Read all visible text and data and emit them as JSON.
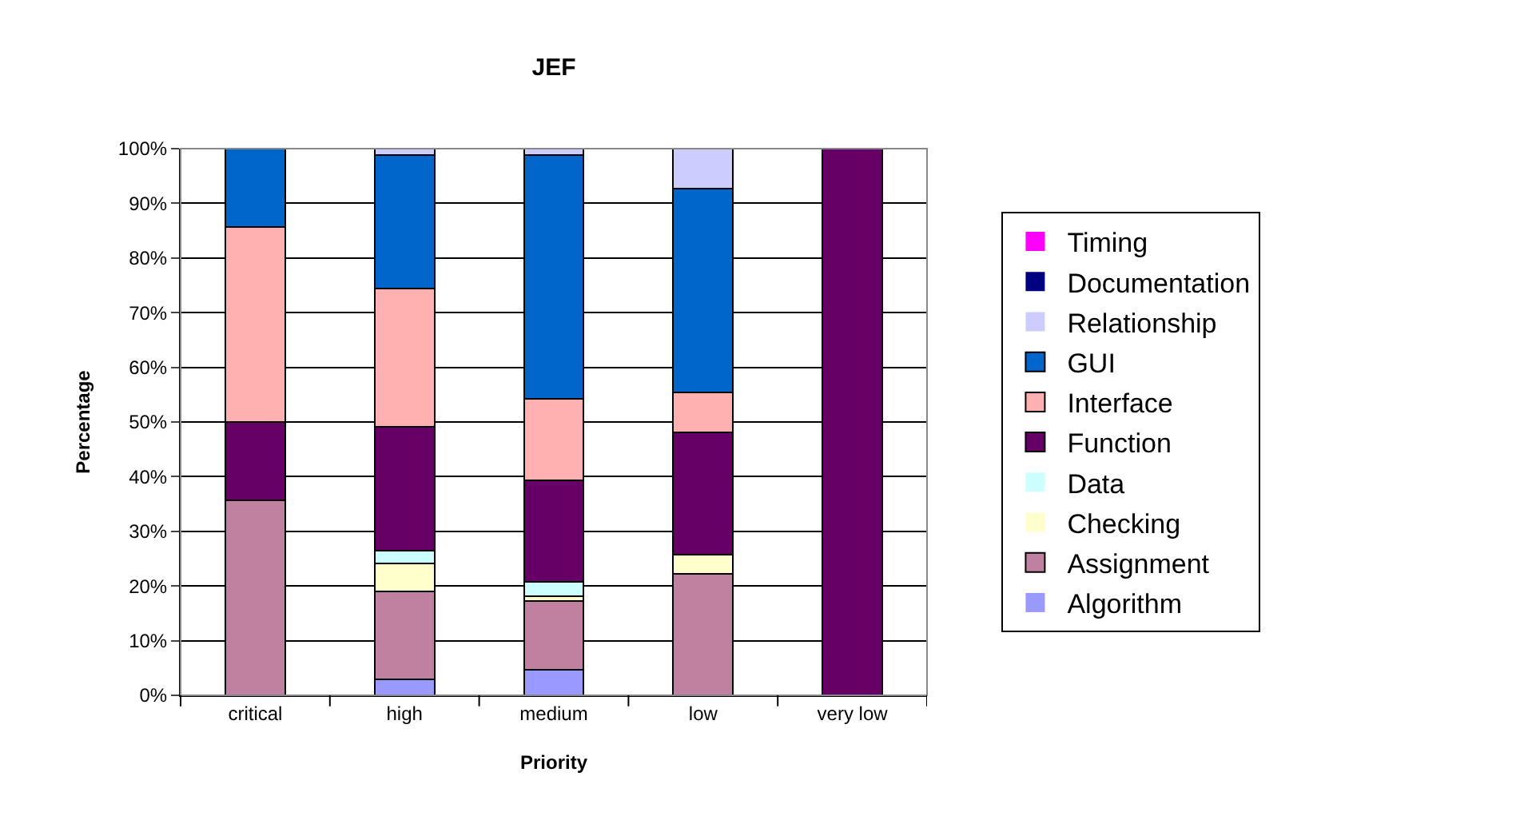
{
  "chart_data": {
    "type": "bar",
    "title": "JEF",
    "xlabel": "Priority",
    "ylabel": "Percentage",
    "stacked": true,
    "categories": [
      "critical",
      "high",
      "medium",
      "low",
      "very low"
    ],
    "series": [
      {
        "name": "Algorithm",
        "color": "#9999ff",
        "values": [
          0,
          2.9,
          4.7,
          0,
          0
        ]
      },
      {
        "name": "Assignment",
        "color": "#c080a0",
        "values": [
          35.7,
          16.1,
          12.6,
          22.2,
          0
        ]
      },
      {
        "name": "Checking",
        "color": "#ffffcc",
        "values": [
          0,
          5.1,
          0.8,
          3.5,
          0
        ]
      },
      {
        "name": "Data",
        "color": "#ccffff",
        "values": [
          0,
          2.3,
          2.6,
          0,
          0
        ]
      },
      {
        "name": "Function",
        "color": "#660066",
        "values": [
          14.3,
          22.7,
          18.6,
          22.4,
          100
        ]
      },
      {
        "name": "Interface",
        "color": "#ffb0b0",
        "values": [
          35.7,
          25.3,
          14.9,
          7.3,
          0
        ]
      },
      {
        "name": "GUI",
        "color": "#0066cc",
        "values": [
          14.3,
          24.4,
          44.6,
          37.3,
          0
        ]
      },
      {
        "name": "Relationship",
        "color": "#ccccff",
        "values": [
          0,
          1.2,
          1.2,
          7.3,
          0
        ]
      },
      {
        "name": "Documentation",
        "color": "#000080",
        "values": [
          0,
          0,
          0,
          0,
          0
        ]
      },
      {
        "name": "Timing",
        "color": "#ff00ff",
        "values": [
          0,
          0,
          0,
          0,
          0
        ]
      }
    ],
    "ylim": [
      0,
      100
    ],
    "yticks": [
      {
        "value": 0,
        "label": "0%"
      },
      {
        "value": 10,
        "label": "10%"
      },
      {
        "value": 20,
        "label": "20%"
      },
      {
        "value": 30,
        "label": "30%"
      },
      {
        "value": 40,
        "label": "40%"
      },
      {
        "value": 50,
        "label": "50%"
      },
      {
        "value": 60,
        "label": "60%"
      },
      {
        "value": 70,
        "label": "70%"
      },
      {
        "value": 80,
        "label": "80%"
      },
      {
        "value": 90,
        "label": "90%"
      },
      {
        "value": 100,
        "label": "100%"
      }
    ],
    "grid": "y",
    "legend": "right"
  }
}
